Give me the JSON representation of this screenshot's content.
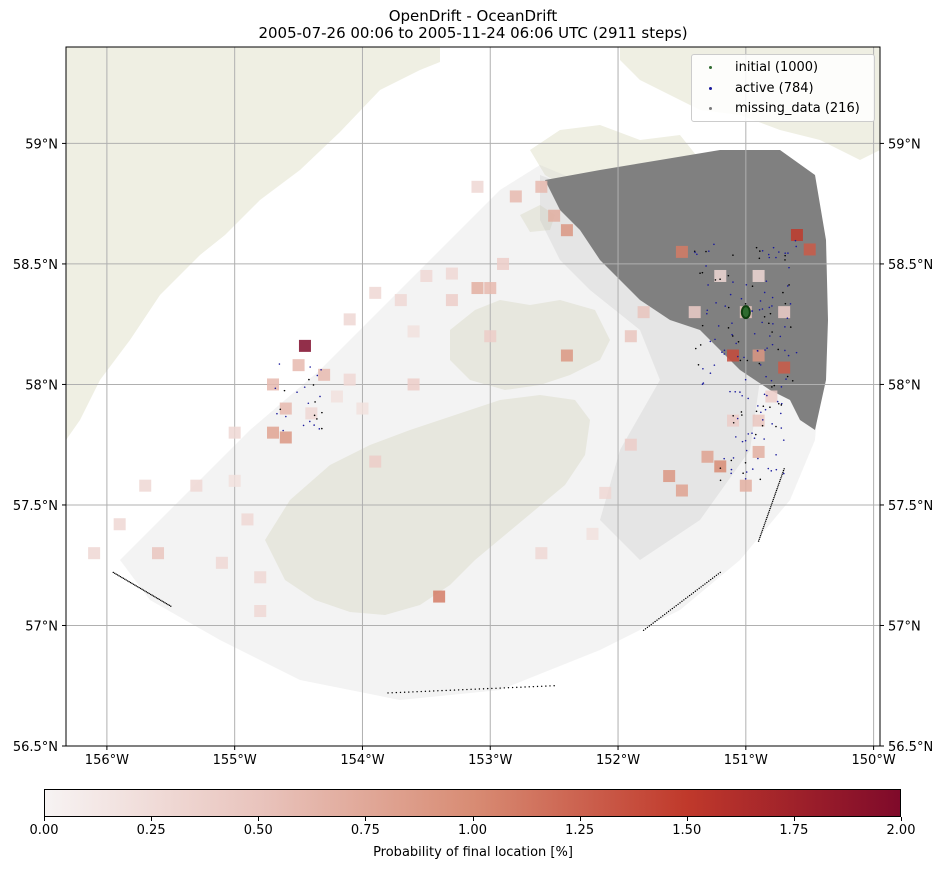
{
  "title": {
    "line1": "OpenDrift - OceanDrift",
    "line2": "2005-07-26 00:06 to 2005-11-24 06:06 UTC (2911 steps)"
  },
  "legend": [
    {
      "label": "initial (1000)",
      "color": "#2f6b2f"
    },
    {
      "label": "active (784)",
      "color": "#1a1a9c"
    },
    {
      "label": "missing_data (216)",
      "color": "#7a7a7a"
    }
  ],
  "lon_ticks": [
    "156°W",
    "155°W",
    "154°W",
    "153°W",
    "152°W",
    "151°W",
    "150°W"
  ],
  "lat_ticks": [
    "59°N",
    "58.5°N",
    "58°N",
    "57.5°N",
    "57°N",
    "56.5°N"
  ],
  "colorbar": {
    "ticks": [
      "0.00",
      "0.25",
      "0.50",
      "0.75",
      "1.00",
      "1.25",
      "1.50",
      "1.75",
      "2.00"
    ],
    "label": "Probability of final location [%]",
    "min": 0,
    "max": 2,
    "colors": [
      "#f7f3f3",
      "#e9c4bd",
      "#d88c74",
      "#c0392b",
      "#7f0a2a"
    ]
  },
  "colors": {
    "land": "#efefe3",
    "ocean": "#ffffff",
    "grid": "#b0b0b0",
    "plume": "#808080"
  },
  "cells": [
    {
      "lon": -154.45,
      "lat": 58.16,
      "p": 2.0
    },
    {
      "lon": -153.4,
      "lat": 57.12,
      "p": 1.1
    },
    {
      "lon": -151.1,
      "lat": 58.12,
      "p": 1.4
    },
    {
      "lon": -150.6,
      "lat": 58.62,
      "p": 1.5
    },
    {
      "lon": -150.5,
      "lat": 58.56,
      "p": 1.3
    },
    {
      "lon": -150.7,
      "lat": 58.07,
      "p": 1.3
    },
    {
      "lon": -151.5,
      "lat": 58.55,
      "p": 1.1
    },
    {
      "lon": -152.4,
      "lat": 58.64,
      "p": 0.9
    },
    {
      "lon": -152.4,
      "lat": 58.12,
      "p": 0.9
    },
    {
      "lon": -154.6,
      "lat": 57.78,
      "p": 0.9
    },
    {
      "lon": -154.7,
      "lat": 57.8,
      "p": 0.8
    },
    {
      "lon": -151.3,
      "lat": 57.7,
      "p": 0.8
    },
    {
      "lon": -151.2,
      "lat": 57.66,
      "p": 1.0
    },
    {
      "lon": -151.6,
      "lat": 57.62,
      "p": 0.9
    },
    {
      "lon": -150.9,
      "lat": 58.12,
      "p": 0.9
    },
    {
      "lon": -150.9,
      "lat": 57.72,
      "p": 0.7
    },
    {
      "lon": -151.0,
      "lat": 57.58,
      "p": 0.7
    },
    {
      "lon": -151.5,
      "lat": 57.56,
      "p": 0.8
    },
    {
      "lon": -153.1,
      "lat": 58.4,
      "p": 0.7
    },
    {
      "lon": -153.0,
      "lat": 58.4,
      "p": 0.6
    },
    {
      "lon": -152.8,
      "lat": 58.78,
      "p": 0.6
    },
    {
      "lon": -152.5,
      "lat": 58.7,
      "p": 0.7
    },
    {
      "lon": -152.6,
      "lat": 58.82,
      "p": 0.6
    },
    {
      "lon": -154.3,
      "lat": 58.04,
      "p": 0.6
    },
    {
      "lon": -154.7,
      "lat": 58.0,
      "p": 0.6
    },
    {
      "lon": -154.6,
      "lat": 57.9,
      "p": 0.6
    },
    {
      "lon": -154.5,
      "lat": 58.08,
      "p": 0.6
    },
    {
      "lon": -153.9,
      "lat": 57.68,
      "p": 0.4
    },
    {
      "lon": -155.6,
      "lat": 57.3,
      "p": 0.5
    },
    {
      "lon": -151.8,
      "lat": 58.3,
      "p": 0.5
    },
    {
      "lon": -151.9,
      "lat": 58.2,
      "p": 0.5
    },
    {
      "lon": -151.0,
      "lat": 58.3,
      "p": 0.5
    },
    {
      "lon": -150.7,
      "lat": 58.3,
      "p": 0.4
    },
    {
      "lon": -151.4,
      "lat": 58.3,
      "p": 0.4
    },
    {
      "lon": -150.9,
      "lat": 57.85,
      "p": 0.5
    },
    {
      "lon": -151.1,
      "lat": 57.85,
      "p": 0.4
    },
    {
      "lon": -150.8,
      "lat": 57.95,
      "p": 0.4
    },
    {
      "lon": -151.9,
      "lat": 57.75,
      "p": 0.4
    },
    {
      "lon": -152.1,
      "lat": 57.55,
      "p": 0.3
    },
    {
      "lon": -153.0,
      "lat": 58.2,
      "p": 0.4
    },
    {
      "lon": -153.6,
      "lat": 58.0,
      "p": 0.4
    },
    {
      "lon": -153.3,
      "lat": 58.35,
      "p": 0.4
    },
    {
      "lon": -152.9,
      "lat": 58.5,
      "p": 0.4
    },
    {
      "lon": -153.7,
      "lat": 58.35,
      "p": 0.3
    },
    {
      "lon": -153.9,
      "lat": 58.38,
      "p": 0.3
    },
    {
      "lon": -154.1,
      "lat": 58.27,
      "p": 0.3
    },
    {
      "lon": -154.1,
      "lat": 58.02,
      "p": 0.3
    },
    {
      "lon": -154.4,
      "lat": 57.88,
      "p": 0.3
    },
    {
      "lon": -155.0,
      "lat": 57.8,
      "p": 0.3
    },
    {
      "lon": -155.3,
      "lat": 57.58,
      "p": 0.3
    },
    {
      "lon": -155.7,
      "lat": 57.58,
      "p": 0.3
    },
    {
      "lon": -155.9,
      "lat": 57.42,
      "p": 0.3
    },
    {
      "lon": -156.1,
      "lat": 57.3,
      "p": 0.3
    },
    {
      "lon": -155.1,
      "lat": 57.26,
      "p": 0.3
    },
    {
      "lon": -154.8,
      "lat": 57.2,
      "p": 0.3
    },
    {
      "lon": -154.8,
      "lat": 57.06,
      "p": 0.3
    },
    {
      "lon": -154.9,
      "lat": 57.44,
      "p": 0.3
    },
    {
      "lon": -152.6,
      "lat": 57.3,
      "p": 0.3
    },
    {
      "lon": -152.2,
      "lat": 57.38,
      "p": 0.2
    },
    {
      "lon": -153.3,
      "lat": 58.46,
      "p": 0.3
    },
    {
      "lon": -153.5,
      "lat": 58.45,
      "p": 0.3
    },
    {
      "lon": -153.1,
      "lat": 58.82,
      "p": 0.3
    },
    {
      "lon": -153.6,
      "lat": 58.22,
      "p": 0.2
    },
    {
      "lon": -154.0,
      "lat": 57.9,
      "p": 0.2
    },
    {
      "lon": -154.2,
      "lat": 57.95,
      "p": 0.2
    },
    {
      "lon": -155.0,
      "lat": 57.6,
      "p": 0.2
    },
    {
      "lon": -151.2,
      "lat": 58.45,
      "p": 0.3
    },
    {
      "lon": -150.9,
      "lat": 58.45,
      "p": 0.3
    }
  ],
  "particle_groups": [
    {
      "status": "active",
      "lon_min": -151.4,
      "lon_max": -150.6,
      "lat_min": 58.0,
      "lat_max": 58.6,
      "n": 110
    },
    {
      "status": "active",
      "lon_min": -151.2,
      "lon_max": -150.7,
      "lat_min": 57.6,
      "lat_max": 58.0,
      "n": 60
    },
    {
      "status": "active",
      "lon_min": -154.7,
      "lon_max": -154.3,
      "lat_min": 57.8,
      "lat_max": 58.1,
      "n": 25
    }
  ],
  "initial_site": {
    "lon": -151.0,
    "lat": 58.3
  },
  "coast_strands": [
    {
      "lon": [
        -155.95,
        -155.5
      ],
      "lat": [
        57.22,
        57.08
      ]
    },
    {
      "lon": [
        -153.8,
        -152.5
      ],
      "lat": [
        56.72,
        56.75
      ]
    },
    {
      "lon": [
        -151.8,
        -151.2
      ],
      "lat": [
        56.98,
        57.22
      ]
    },
    {
      "lon": [
        -150.9,
        -150.7
      ],
      "lat": [
        57.35,
        57.65
      ]
    }
  ]
}
